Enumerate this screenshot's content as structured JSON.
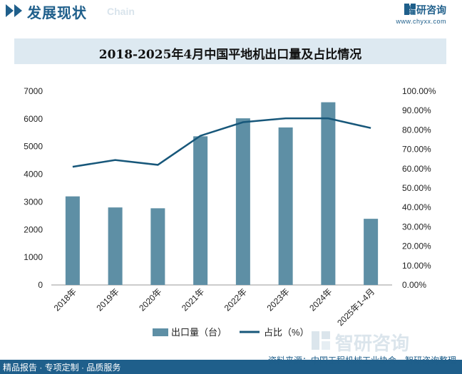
{
  "header": {
    "title": "发展现状",
    "subtitle": "Chain",
    "brand_name": "智研咨询",
    "brand_url": "www.chyxx.com",
    "accent_color": "#1f5f8b"
  },
  "chart_data": {
    "type": "bar",
    "title": "2018-2025年4月中国平地机出口量及占比情况",
    "categories": [
      "2018年",
      "2019年",
      "2020年",
      "2021年",
      "2022年",
      "2023年",
      "2024年",
      "2025年1-4月"
    ],
    "series": [
      {
        "name": "出口量（台）",
        "type": "bar",
        "axis": "left",
        "values": [
          3200,
          2800,
          2770,
          5370,
          6020,
          5690,
          6600,
          2390
        ],
        "color": "#5e8fa5"
      },
      {
        "name": "占比（%）",
        "type": "line",
        "axis": "right",
        "values": [
          61.0,
          64.5,
          62.0,
          77.0,
          84.0,
          86.0,
          86.0,
          81.0
        ],
        "color": "#17577a"
      }
    ],
    "y_left": {
      "range": [
        0,
        7000
      ],
      "ticks": [
        "0",
        "1000",
        "2000",
        "3000",
        "4000",
        "5000",
        "6000",
        "7000"
      ]
    },
    "y_right": {
      "range": [
        0,
        100
      ],
      "ticks": [
        "0.00%",
        "10.00%",
        "20.00%",
        "30.00%",
        "40.00%",
        "50.00%",
        "60.00%",
        "70.00%",
        "80.00%",
        "90.00%",
        "100.00%"
      ]
    },
    "grid": false,
    "legend_placement": "bottom"
  },
  "footer": {
    "left_text": "精品报告 · 专项定制 · 品质服务",
    "source": "资料来源：中国工程机械工业协会、智研咨询整理"
  },
  "watermark": {
    "text": "智研咨询"
  }
}
